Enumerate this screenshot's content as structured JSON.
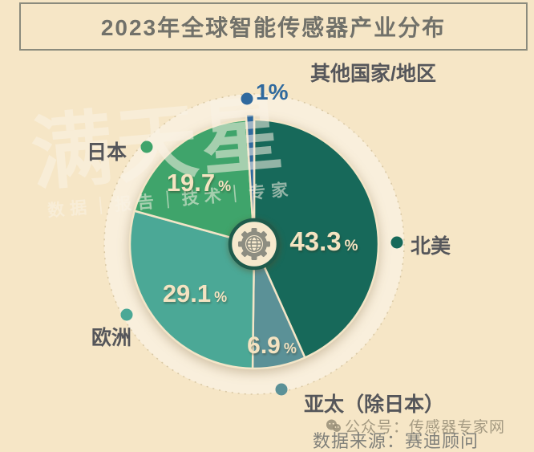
{
  "title": "2023年全球智能传感器产业分布",
  "source_note": "数据来源：赛迪顾问",
  "watermarks": {
    "brand": "满天星",
    "brand_sub": "数据｜报告｜技术｜专家",
    "account": "公众号：传感器专家网",
    "account_icon": "chat-bubbles-icon"
  },
  "colors": {
    "background": "#f6e6c6",
    "ring_fill": "#f9efdc",
    "ring_edge": "#d8c7a3",
    "slice_gap": "#f3e5c7",
    "title_text": "#71716a",
    "title_border": "#8b8b7d",
    "label_text": "#55565a",
    "pct_text": "#f4e3c1",
    "hub_fill": "#f6e9cd",
    "hub_border": "#1e5b4c",
    "icon_gray": "#8d8d81",
    "source_text": "#80807a",
    "watermark_cream": "rgba(250,243,229,0.55)",
    "watermark_gray": "rgba(150,141,119,0.85)"
  },
  "chart_data": {
    "type": "pie",
    "title": "2023年全球智能传感器产业分布",
    "start_angle_deg": 0,
    "direction": "clockwise",
    "percent_sign": "%",
    "center_icon": "gear-globe-icon",
    "slices": [
      {
        "label": "北美",
        "value": 43.3,
        "pct_label": "43.3",
        "color": "#17695a"
      },
      {
        "label": "亚太（除日本）",
        "value": 6.9,
        "pct_label": "6.9",
        "color": "#5b9197"
      },
      {
        "label": "欧洲",
        "value": 29.1,
        "pct_label": "29.1",
        "color": "#4ba896"
      },
      {
        "label": "日本",
        "value": 19.7,
        "pct_label": "19.7",
        "color": "#3fa46b"
      },
      {
        "label": "其他国家/地区",
        "value": 1.0,
        "pct_label": "1",
        "color": "#2f699e",
        "emphasized": true
      }
    ]
  }
}
